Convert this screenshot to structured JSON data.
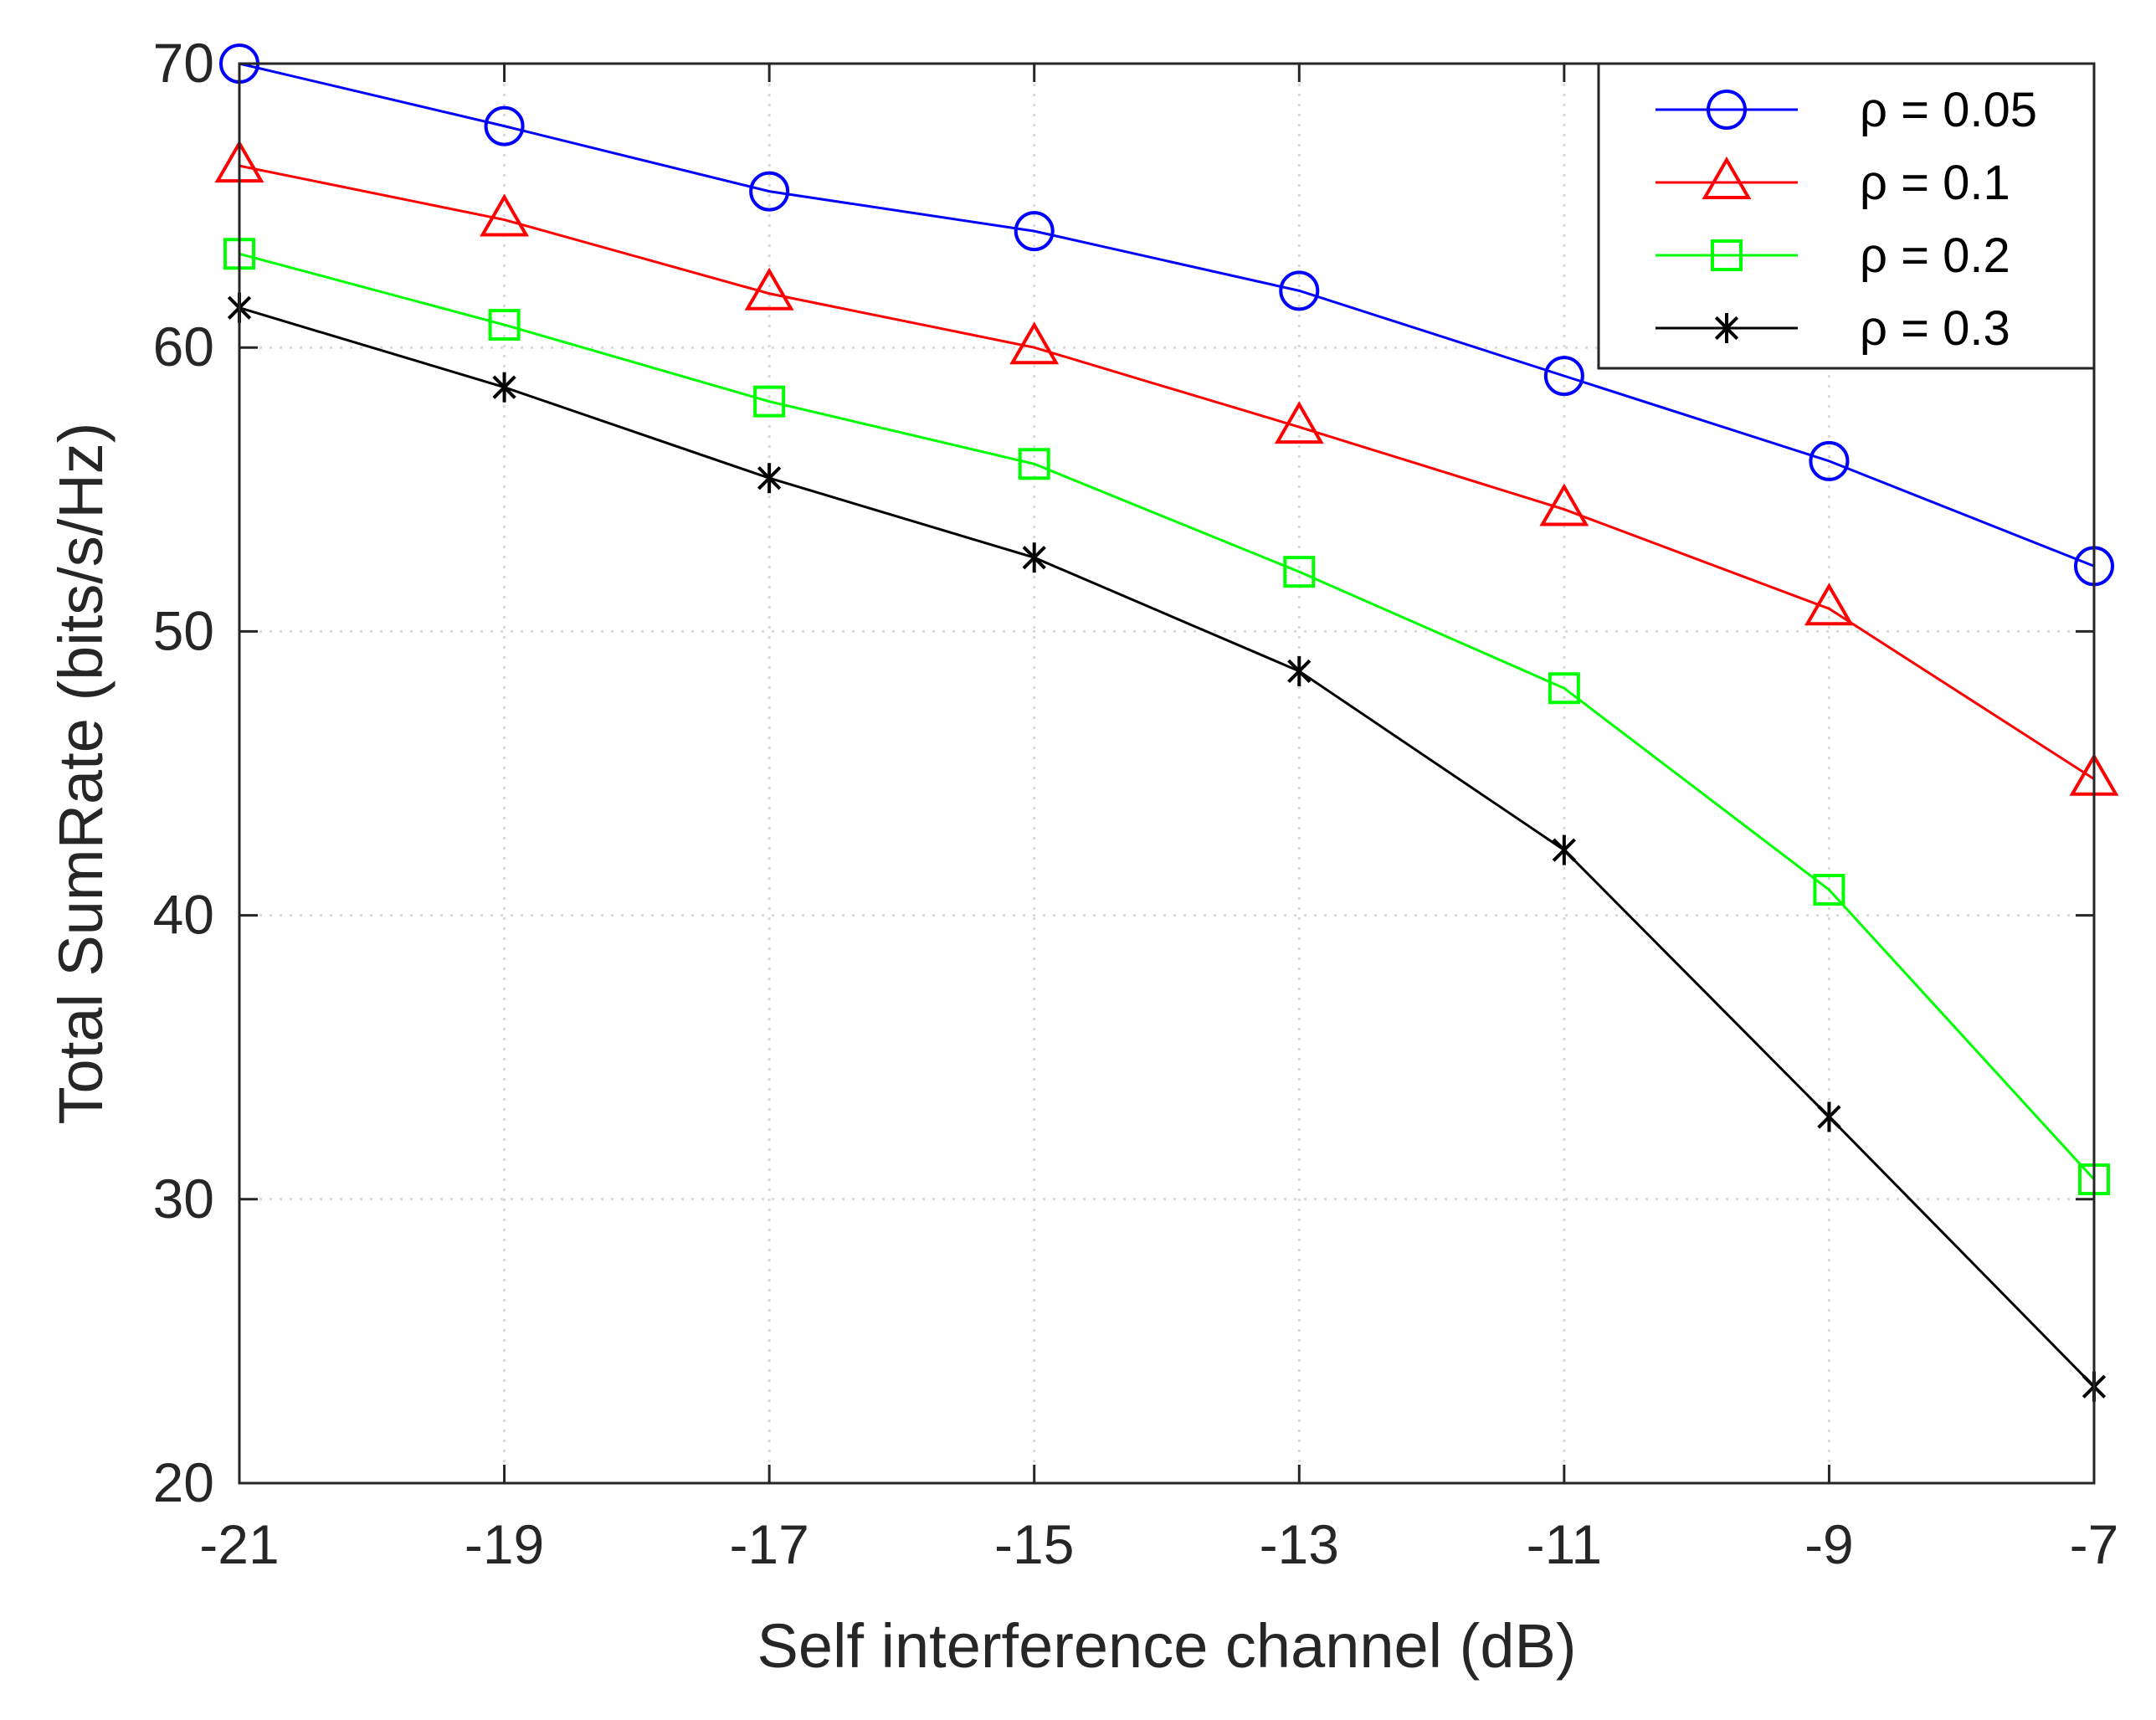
{
  "chart_data": {
    "type": "line",
    "title": "",
    "xlabel": "Self interference channel (dB)",
    "ylabel": "Total SumRate (bits/s/Hz)",
    "x": [
      -21,
      -19,
      -17,
      -15,
      -13,
      -11,
      -9,
      -7
    ],
    "xticks": [
      "-21",
      "-19",
      "-17",
      "-15",
      "-13",
      "-11",
      "-9",
      "-7"
    ],
    "xlim": [
      -21,
      -7
    ],
    "ylim": [
      20,
      70
    ],
    "yticks": [
      "20",
      "30",
      "40",
      "50",
      "60",
      "70"
    ],
    "grid": true,
    "legend_position": "top-right",
    "series": [
      {
        "name": "ρ = 0.05",
        "color": "#0000ff",
        "marker": "circle",
        "values": [
          70.0,
          67.8,
          65.5,
          64.1,
          62.0,
          59.0,
          56.0,
          52.3
        ]
      },
      {
        "name": "ρ = 0.1",
        "color": "#ff0000",
        "marker": "triangle",
        "values": [
          66.4,
          64.5,
          61.9,
          60.0,
          57.2,
          54.3,
          50.8,
          44.8
        ]
      },
      {
        "name": "ρ = 0.2",
        "color": "#00ff00",
        "marker": "square",
        "values": [
          63.3,
          60.8,
          58.1,
          55.9,
          52.1,
          48.0,
          40.9,
          30.7
        ]
      },
      {
        "name": "ρ = 0.3",
        "color": "#000000",
        "marker": "asterisk",
        "values": [
          61.4,
          58.6,
          55.4,
          52.6,
          48.6,
          42.3,
          32.9,
          23.4
        ]
      }
    ]
  }
}
